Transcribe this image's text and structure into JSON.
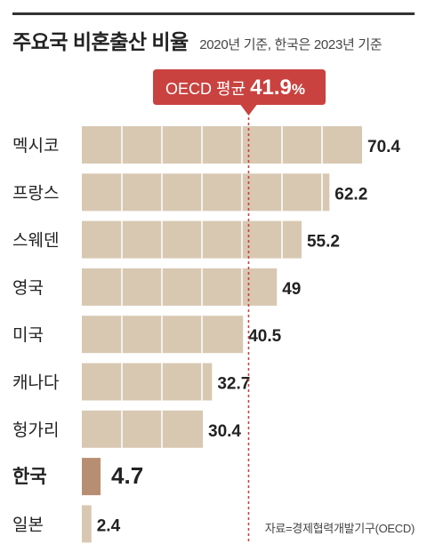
{
  "header": {
    "title": "주요국 비혼출산 비율",
    "subtitle": "2020년 기준, 한국은 2023년 기준"
  },
  "callout": {
    "label": "OECD 평균",
    "value": "41.9%",
    "value_number": "41.9",
    "value_unit": "%",
    "color": "#c9423f"
  },
  "source": "자료=경제협력개발기구(OECD)",
  "colors": {
    "bar": "#d8c8b2",
    "highlight_bar": "#b88e72",
    "reference_line": "#c9423f"
  },
  "chart_data": {
    "type": "bar",
    "orientation": "horizontal",
    "categories": [
      "멕시코",
      "프랑스",
      "스웨덴",
      "영국",
      "미국",
      "캐나다",
      "헝가리",
      "한국",
      "일본"
    ],
    "values": [
      70.4,
      62.2,
      55.2,
      49,
      40.5,
      32.7,
      30.4,
      4.7,
      2.4
    ],
    "value_labels": [
      "70.4",
      "62.2",
      "55.2",
      "49",
      "40.5",
      "32.7",
      "30.4",
      "4.7",
      "2.4"
    ],
    "highlight": "한국",
    "reference_line": {
      "value": 41.9,
      "label": "OECD 평균 41.9%"
    },
    "xlim": [
      0,
      70.4
    ],
    "grid": true
  }
}
